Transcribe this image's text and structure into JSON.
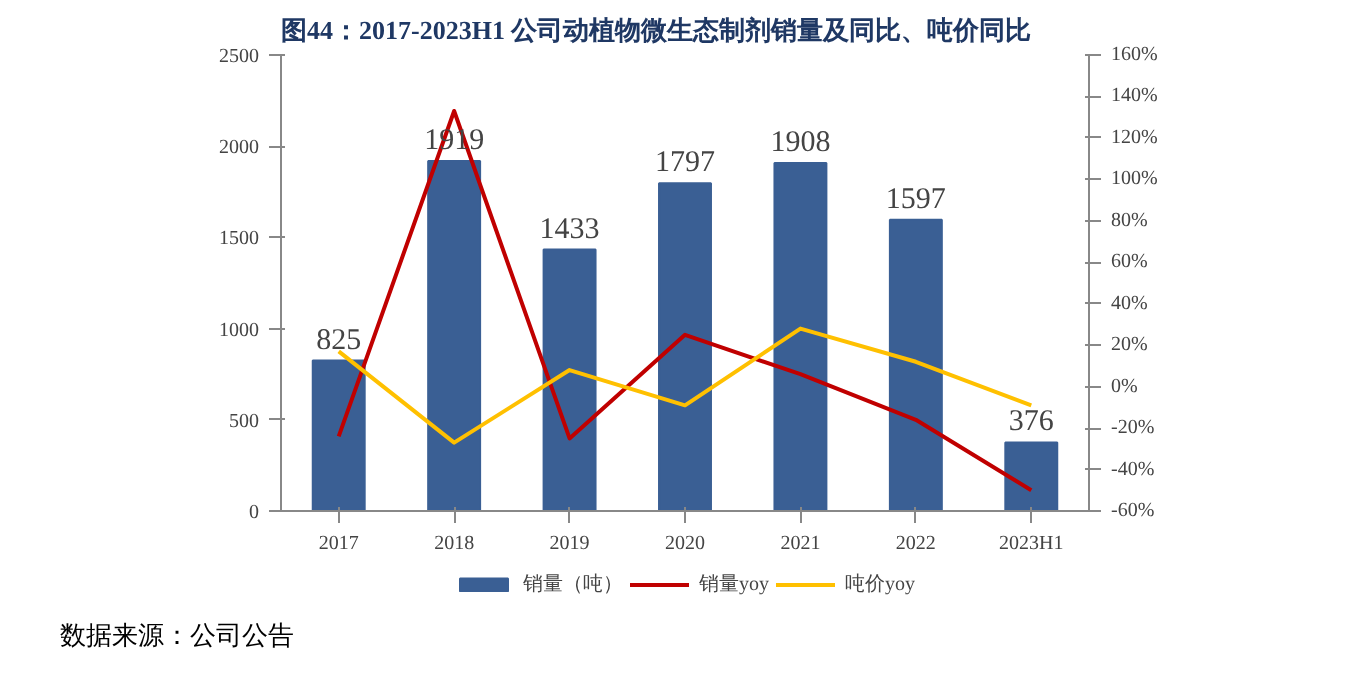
{
  "chart_data": {
    "type": "bar",
    "title": "图44：2017-2023H1 公司动植物微生态制剂销量及同比、吨价同比",
    "categories": [
      "2017",
      "2018",
      "2019",
      "2020",
      "2021",
      "2022",
      "2023H1"
    ],
    "series": [
      {
        "name": "销量（吨）",
        "type": "bar",
        "color": "#3a5f94",
        "values": [
          825,
          1919,
          1433,
          1797,
          1908,
          1597,
          376
        ],
        "value_labels": [
          "825",
          "1919",
          "1433",
          "1797",
          "1908",
          "1597",
          "376"
        ]
      },
      {
        "name": "销量yoy",
        "type": "line",
        "axis": "y2",
        "color": "#c00000",
        "values": [
          -24,
          133,
          -25,
          25,
          6,
          -16,
          -50
        ]
      },
      {
        "name": "吨价yoy",
        "type": "line",
        "axis": "y2",
        "color": "#ffc000",
        "values": [
          17,
          -27,
          8,
          -9,
          28,
          12,
          -9
        ]
      }
    ],
    "ylim": [
      0,
      2500
    ],
    "yticks": [
      0,
      500,
      1000,
      1500,
      2000,
      2500
    ],
    "y2lim": [
      -60,
      160
    ],
    "y2ticks": [
      {
        "value": -60,
        "label": "-60%"
      },
      {
        "value": -40,
        "label": "-40%"
      },
      {
        "value": -20,
        "label": "-20%"
      },
      {
        "value": 0,
        "label": "0%"
      },
      {
        "value": 20,
        "label": "20%"
      },
      {
        "value": 40,
        "label": "40%"
      },
      {
        "value": 60,
        "label": "60%"
      },
      {
        "value": 80,
        "label": "80%"
      },
      {
        "value": 100,
        "label": "100%"
      },
      {
        "value": 120,
        "label": "120%"
      },
      {
        "value": 140,
        "label": "140%"
      },
      {
        "value": 160,
        "label": "160%"
      }
    ],
    "legend": "bottom",
    "grid": false,
    "annotations": [
      "数据来源：公司公告"
    ]
  }
}
